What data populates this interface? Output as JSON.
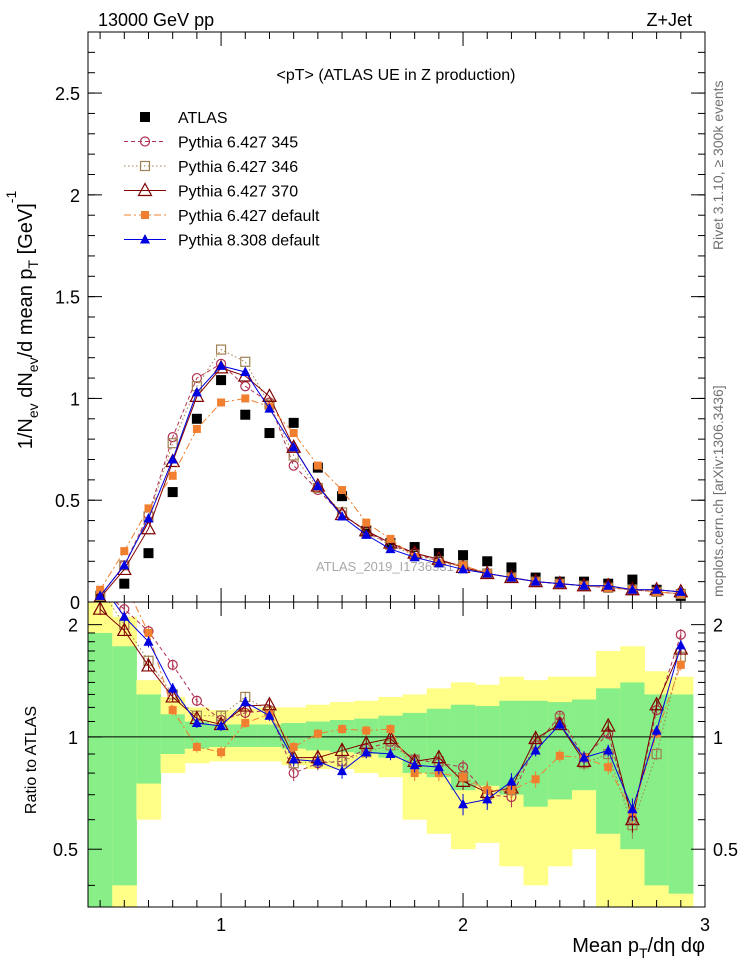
{
  "header": {
    "left": "13000 GeV pp",
    "right": "Z+Jet"
  },
  "side": {
    "rivet": "Rivet 3.1.10, ≥ 300k events",
    "mcplots": "mcplots.cern.ch [arXiv:1306.3436]"
  },
  "watermark": "ATLAS_2019_I1736531",
  "colors": {
    "atlas": "#000000",
    "p345": "#b03050",
    "p346": "#a08050",
    "p370": "#800000",
    "p6def": "#f08030",
    "p8def": "#0000e0",
    "band_yellow": "#ffff88",
    "band_green": "#88ee88"
  },
  "chart_data": {
    "type": "line",
    "title": "<pT> (ATLAS UE in Z production)",
    "ylabel_main": "1/N_ev dN_ev/d mean p_T [GeV]^-1",
    "ylabel_ratio": "Ratio to ATLAS",
    "xlabel": "Mean p_T/dη dφ",
    "xlim": [
      0.45,
      3.0
    ],
    "ylim_main": [
      0,
      2.8
    ],
    "ylim_ratio": [
      0.35,
      2.3
    ],
    "x_ticks": [
      "1",
      "2",
      "3"
    ],
    "y_ticks_main": [
      "0",
      "0.5",
      "1",
      "1.5",
      "2",
      "2.5"
    ],
    "y_ticks_ratio": [
      "0.5",
      "1",
      "2"
    ],
    "legend_position": "top-left",
    "x": [
      0.5,
      0.6,
      0.7,
      0.8,
      0.9,
      1.0,
      1.1,
      1.2,
      1.3,
      1.4,
      1.5,
      1.6,
      1.7,
      1.8,
      1.9,
      2.0,
      2.1,
      2.2,
      2.3,
      2.4,
      2.5,
      2.6,
      2.7,
      2.8,
      2.9
    ],
    "series": [
      {
        "name": "ATLAS",
        "style": "data",
        "values": [
          0.02,
          0.09,
          0.24,
          0.54,
          0.9,
          1.09,
          0.92,
          0.83,
          0.88,
          0.66,
          0.52,
          0.35,
          0.29,
          0.27,
          0.24,
          0.23,
          0.2,
          0.17,
          0.12,
          0.1,
          0.1,
          0.09,
          0.11,
          0.06,
          0.03
        ],
        "ratio": [
          1.0,
          1.0,
          1.0,
          1.0,
          1.0,
          1.0,
          1.0,
          1.0,
          1.0,
          1.0,
          1.0,
          1.0,
          1.0,
          1.0,
          1.0,
          1.0,
          1.0,
          1.0,
          1.0,
          1.0,
          1.0,
          1.0,
          1.0,
          1.0,
          1.0
        ]
      },
      {
        "name": "Pythia 6.427 345",
        "style": "open-circle-dashed",
        "values": [
          0.03,
          0.18,
          0.43,
          0.81,
          1.1,
          1.17,
          1.06,
          0.98,
          0.67,
          0.55,
          0.43,
          0.35,
          0.28,
          0.24,
          0.2,
          0.18,
          0.14,
          0.12,
          0.1,
          0.09,
          0.08,
          0.07,
          0.06,
          0.05,
          0.04
        ],
        "ratio": [
          2.5,
          2.2,
          1.92,
          1.56,
          1.25,
          1.11,
          1.16,
          1.18,
          0.8,
          0.85,
          0.86,
          0.93,
          0.97,
          0.87,
          0.85,
          0.83,
          0.7,
          0.69,
          0.95,
          1.14,
          0.88,
          1.02,
          0.6,
          1.18,
          1.88
        ]
      },
      {
        "name": "Pythia 6.427 346",
        "style": "open-square-dotted",
        "values": [
          0.03,
          0.18,
          0.42,
          0.78,
          1.06,
          1.24,
          1.18,
          0.97,
          0.72,
          0.56,
          0.44,
          0.34,
          0.28,
          0.23,
          0.2,
          0.18,
          0.14,
          0.12,
          0.1,
          0.09,
          0.08,
          0.07,
          0.06,
          0.05,
          0.04
        ],
        "ratio": [
          2.5,
          2.0,
          1.6,
          1.3,
          1.14,
          1.14,
          1.28,
          1.17,
          0.85,
          0.86,
          0.86,
          0.91,
          0.95,
          0.87,
          0.86,
          0.78,
          0.7,
          0.72,
          0.96,
          1.12,
          0.85,
          0.9,
          0.58,
          0.9,
          1.64
        ]
      },
      {
        "name": "Pythia 6.427 370",
        "style": "open-triangle-solid",
        "values": [
          0.02,
          0.16,
          0.36,
          0.69,
          1.01,
          1.15,
          1.11,
          1.01,
          0.76,
          0.57,
          0.43,
          0.35,
          0.29,
          0.24,
          0.21,
          0.17,
          0.14,
          0.12,
          0.1,
          0.09,
          0.08,
          0.08,
          0.06,
          0.06,
          0.05
        ],
        "ratio": [
          2.2,
          1.93,
          1.55,
          1.28,
          1.12,
          1.08,
          1.21,
          1.22,
          0.88,
          0.88,
          0.92,
          0.96,
          0.99,
          0.86,
          0.88,
          0.76,
          0.71,
          0.73,
          0.99,
          1.08,
          0.86,
          1.07,
          0.6,
          1.22,
          1.72
        ]
      },
      {
        "name": "Pythia 6.427 default",
        "style": "filled-square-dashdot",
        "values": [
          0.06,
          0.25,
          0.46,
          0.62,
          0.85,
          0.98,
          1.0,
          0.96,
          0.83,
          0.67,
          0.55,
          0.39,
          0.31,
          0.22,
          0.19,
          0.18,
          0.14,
          0.12,
          0.1,
          0.09,
          0.08,
          0.07,
          0.06,
          0.05,
          0.04
        ],
        "ratio": [
          3.0,
          2.6,
          1.9,
          1.18,
          0.94,
          0.91,
          1.09,
          1.15,
          0.94,
          1.02,
          1.05,
          1.04,
          1.05,
          0.8,
          0.8,
          0.78,
          0.72,
          0.72,
          0.77,
          0.89,
          0.88,
          0.83,
          0.63,
          1.02,
          1.56
        ]
      },
      {
        "name": "Pythia 8.308 default",
        "style": "filled-triangle-solid",
        "values": [
          0.03,
          0.18,
          0.41,
          0.7,
          1.03,
          1.16,
          1.13,
          0.95,
          0.76,
          0.57,
          0.42,
          0.33,
          0.26,
          0.22,
          0.19,
          0.16,
          0.14,
          0.12,
          0.1,
          0.09,
          0.08,
          0.08,
          0.06,
          0.06,
          0.05
        ],
        "ratio": [
          2.6,
          2.1,
          1.8,
          1.35,
          1.09,
          1.07,
          1.24,
          1.14,
          0.87,
          0.86,
          0.81,
          0.91,
          0.9,
          0.84,
          0.83,
          0.66,
          0.68,
          0.76,
          0.92,
          1.08,
          0.88,
          0.92,
          0.64,
          1.04,
          1.76
        ]
      }
    ],
    "bands": {
      "edges": [
        0.45,
        0.55,
        0.65,
        0.75,
        0.85,
        0.95,
        1.05,
        1.15,
        1.25,
        1.35,
        1.45,
        1.55,
        1.65,
        1.75,
        1.85,
        1.95,
        2.05,
        2.15,
        2.25,
        2.35,
        2.45,
        2.55,
        2.65,
        2.75,
        2.85,
        2.95
      ],
      "yellow_low": [
        0.35,
        0.35,
        0.6,
        0.8,
        0.85,
        0.86,
        0.86,
        0.86,
        0.84,
        0.82,
        0.82,
        0.8,
        0.78,
        0.6,
        0.55,
        0.5,
        0.52,
        0.45,
        0.4,
        0.45,
        0.5,
        0.35,
        0.35,
        0.35,
        0.35
      ],
      "yellow_high": [
        2.3,
        2.1,
        1.42,
        1.28,
        1.2,
        1.18,
        1.19,
        1.2,
        1.2,
        1.22,
        1.24,
        1.25,
        1.28,
        1.3,
        1.35,
        1.4,
        1.38,
        1.45,
        1.42,
        1.45,
        1.45,
        1.7,
        1.75,
        1.5,
        1.45
      ],
      "green_low": [
        0.35,
        0.4,
        0.75,
        0.9,
        0.93,
        0.94,
        0.94,
        0.94,
        0.93,
        0.92,
        0.91,
        0.9,
        0.88,
        0.8,
        0.78,
        0.72,
        0.74,
        0.7,
        0.65,
        0.68,
        0.72,
        0.55,
        0.5,
        0.4,
        0.38
      ],
      "green_high": [
        1.9,
        1.75,
        1.3,
        1.15,
        1.1,
        1.08,
        1.08,
        1.08,
        1.09,
        1.1,
        1.11,
        1.12,
        1.14,
        1.16,
        1.19,
        1.22,
        1.21,
        1.25,
        1.25,
        1.24,
        1.26,
        1.35,
        1.4,
        1.3,
        1.3
      ]
    }
  }
}
